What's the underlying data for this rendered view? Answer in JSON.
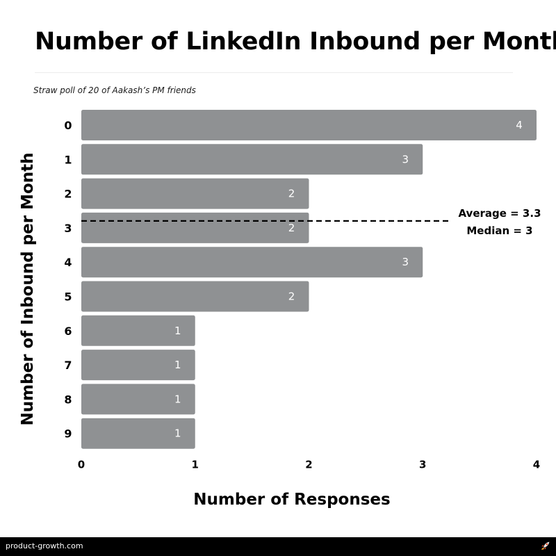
{
  "chart_data": {
    "type": "bar",
    "orientation": "horizontal",
    "title": "Number of LinkedIn Inbound per Month",
    "subtitle": "Straw poll of 20 of Aakash’s PM friends",
    "xlabel": "Number of Responses",
    "ylabel": "Number of Inbound per Month",
    "categories": [
      "0",
      "1",
      "2",
      "3",
      "4",
      "5",
      "6",
      "7",
      "8",
      "9"
    ],
    "values": [
      4,
      3,
      2,
      2,
      3,
      2,
      1,
      1,
      1,
      1
    ],
    "data_labels": [
      "4",
      "3",
      "2",
      "2",
      "3",
      "2",
      "1",
      "1",
      "1",
      "1"
    ],
    "xlim": [
      0,
      4
    ],
    "xticks": [
      "0",
      "1",
      "2",
      "3",
      "4"
    ],
    "grid": false,
    "bar_color": "#8f9193",
    "annotation": {
      "reference_category": 3,
      "line_style": "dashed",
      "lines": [
        "Average = 3.3",
        "Median = 3"
      ]
    }
  },
  "footer": {
    "site": "product-growth.com",
    "icon": "rocket-icon"
  }
}
